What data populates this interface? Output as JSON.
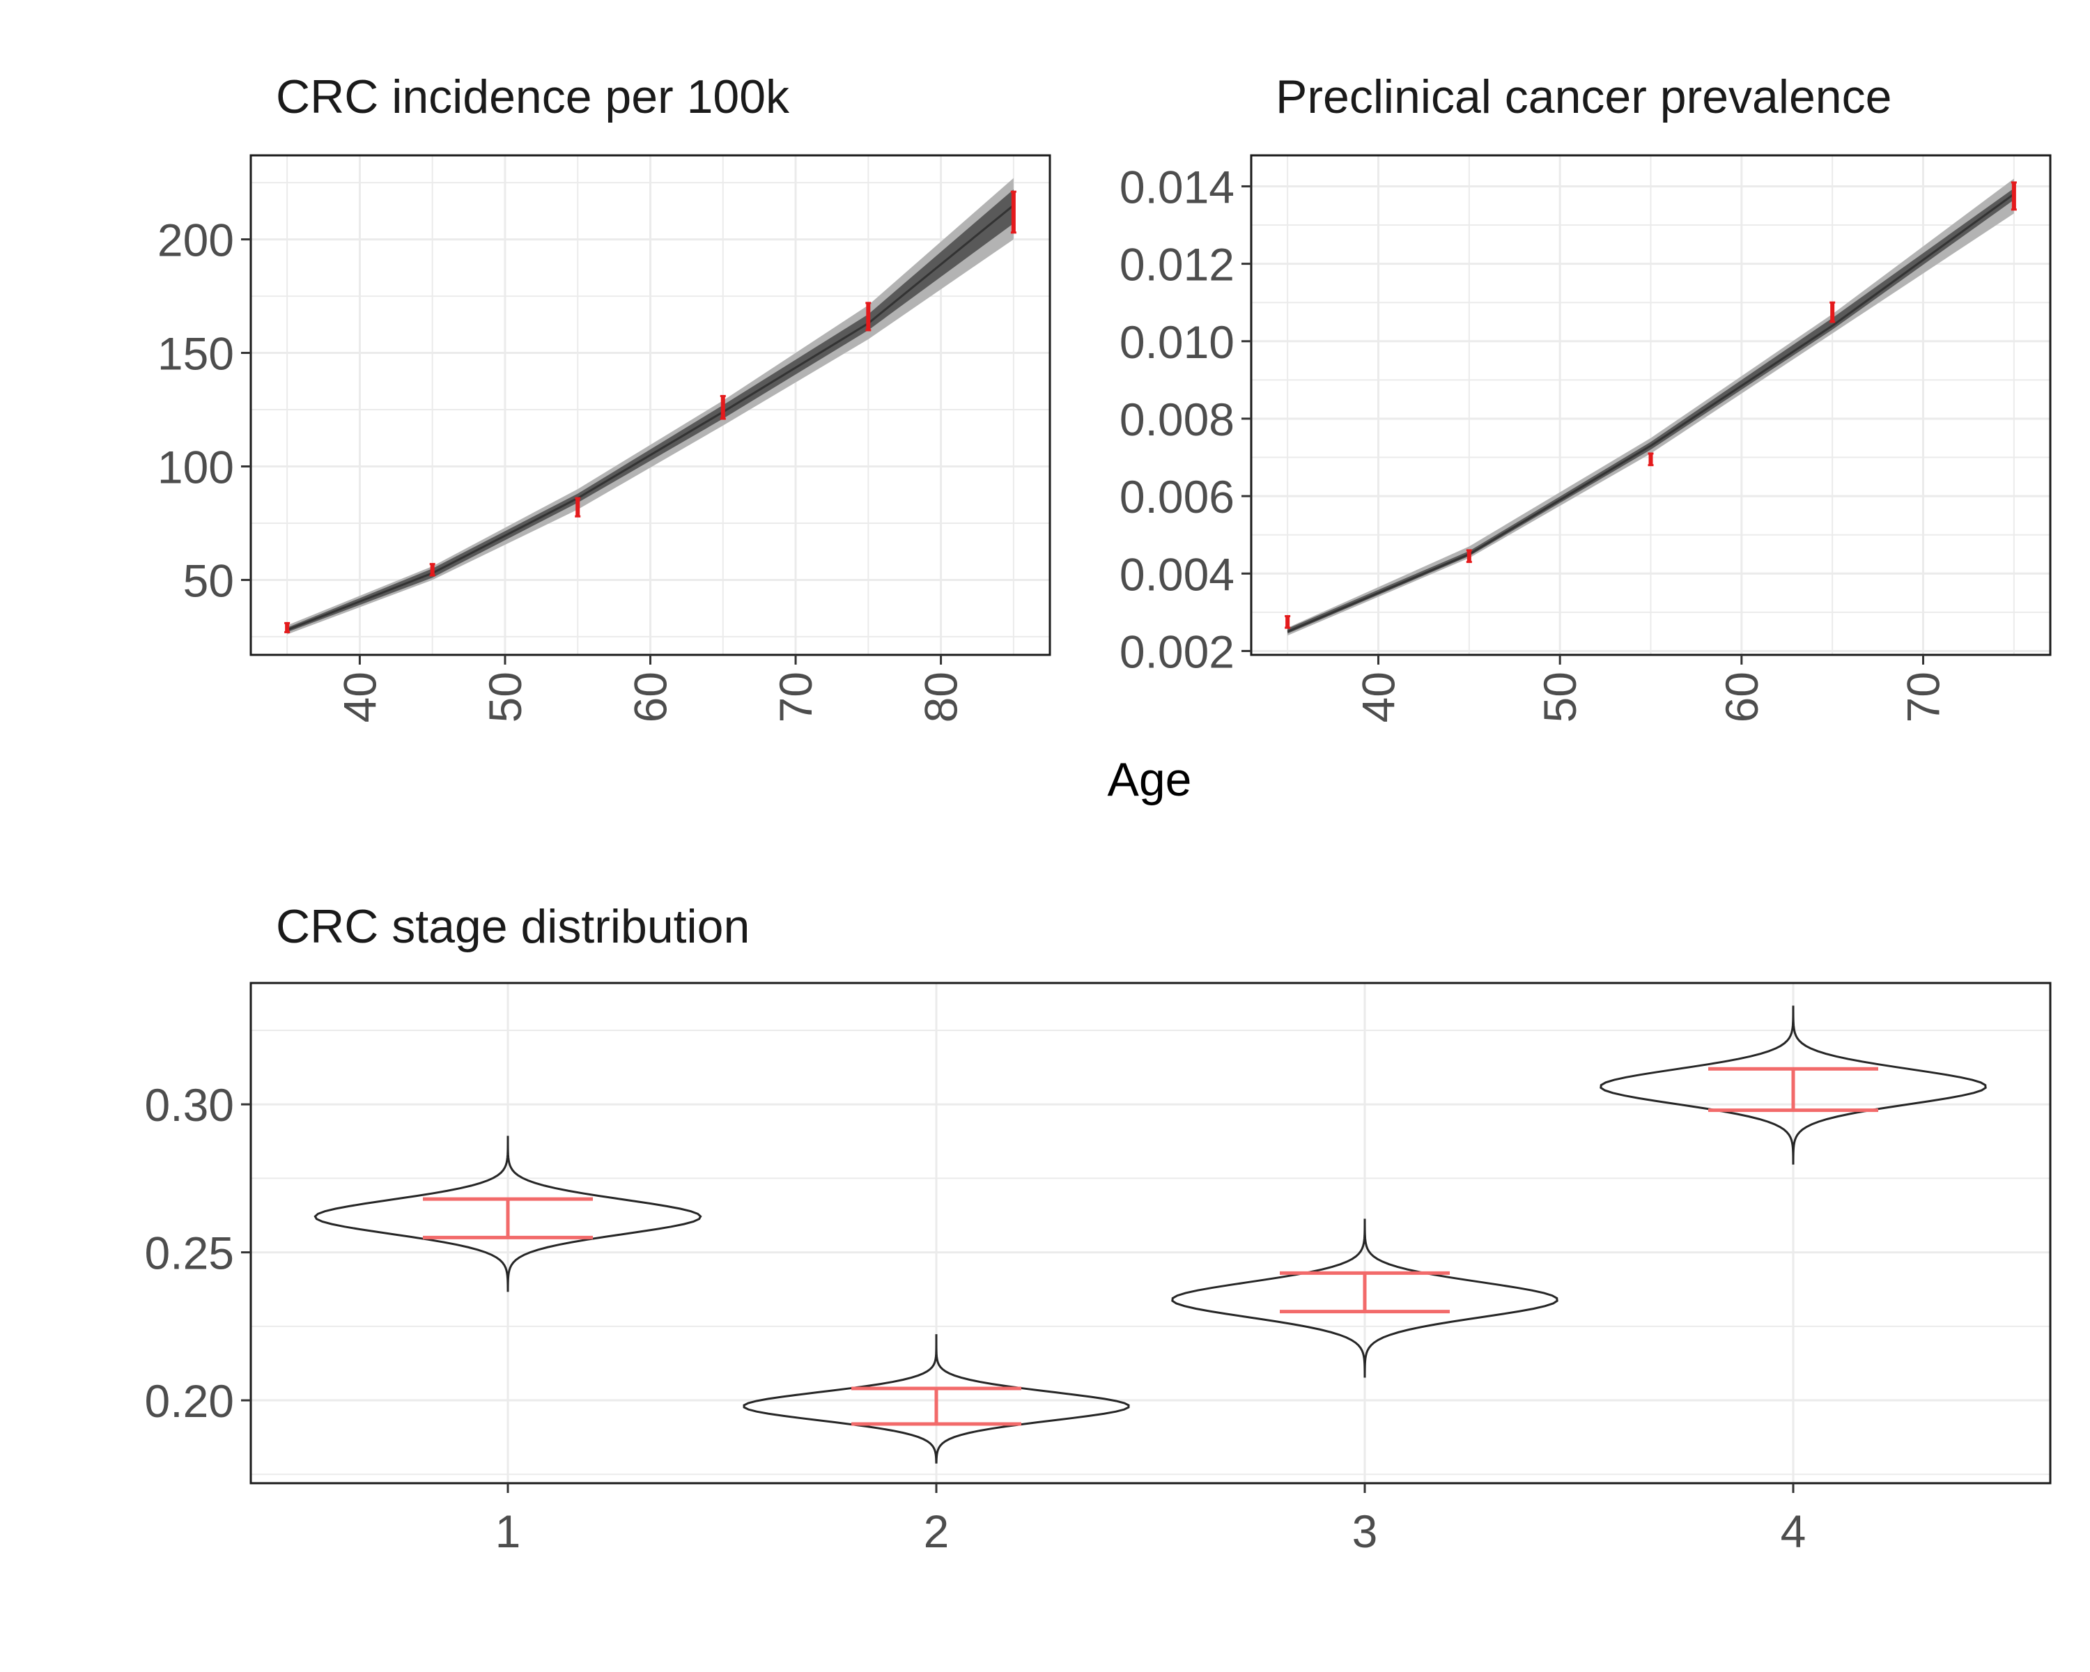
{
  "shared_xlabel": "Age",
  "colors": {
    "band_outer": "#b3b3b3",
    "band_inner": "#595959",
    "line": "#333333",
    "target": "#e41a1c",
    "target_soft": "#f26a6a",
    "grid": "#ebebeb",
    "violin_stroke": "#262626"
  },
  "chart_data": [
    {
      "id": "incidence",
      "type": "line",
      "title": "CRC incidence per 100k",
      "xlabel": "Age",
      "ylabel": "",
      "xlim": [
        32.5,
        87.5
      ],
      "ylim": [
        17,
        237
      ],
      "xticks": [
        40,
        50,
        60,
        70,
        80
      ],
      "yticks": [
        50,
        100,
        150,
        200
      ],
      "ytick_labels": [
        "50",
        "100",
        "150",
        "200"
      ],
      "x": [
        35,
        45,
        55,
        65,
        75,
        85
      ],
      "model_median": [
        28,
        53,
        86,
        124,
        163,
        215
      ],
      "model_inner": [
        [
          27,
          29
        ],
        [
          51,
          55
        ],
        [
          84,
          88
        ],
        [
          121,
          127
        ],
        [
          160,
          167
        ],
        [
          207,
          222
        ]
      ],
      "model_outer": [
        [
          26,
          30
        ],
        [
          50,
          56
        ],
        [
          81,
          90
        ],
        [
          118,
          129
        ],
        [
          156,
          171
        ],
        [
          200,
          227
        ]
      ],
      "targets": [
        [
          27,
          31
        ],
        [
          52,
          57
        ],
        [
          78,
          86
        ],
        [
          121,
          131
        ],
        [
          160,
          172
        ],
        [
          203,
          221
        ]
      ]
    },
    {
      "id": "prevalence",
      "type": "line",
      "title": "Preclinical cancer prevalence",
      "xlabel": "Age",
      "ylabel": "",
      "xlim": [
        33,
        77
      ],
      "ylim": [
        0.0019,
        0.0148
      ],
      "xticks": [
        40,
        50,
        60,
        70
      ],
      "yticks": [
        0.002,
        0.004,
        0.006,
        0.008,
        0.01,
        0.012,
        0.014
      ],
      "ytick_labels": [
        "0.002",
        "0.004",
        "0.006",
        "0.008",
        "0.010",
        "0.012",
        "0.014"
      ],
      "x": [
        35,
        45,
        55,
        65,
        75
      ],
      "model_median": [
        0.0025,
        0.0045,
        0.0073,
        0.0104,
        0.0138
      ],
      "model_inner": [
        [
          0.00245,
          0.00258
        ],
        [
          0.00445,
          0.00458
        ],
        [
          0.0072,
          0.0074
        ],
        [
          0.0103,
          0.0106
        ],
        [
          0.01365,
          0.01395
        ]
      ],
      "model_outer": [
        [
          0.0024,
          0.0026
        ],
        [
          0.0044,
          0.0047
        ],
        [
          0.0071,
          0.0075
        ],
        [
          0.0102,
          0.0107
        ],
        [
          0.0133,
          0.0142
        ]
      ],
      "targets": [
        [
          0.0026,
          0.0029
        ],
        [
          0.0043,
          0.0046
        ],
        [
          0.0068,
          0.0071
        ],
        [
          0.0105,
          0.011
        ],
        [
          0.0134,
          0.0141
        ]
      ]
    },
    {
      "id": "stage",
      "type": "violin",
      "title": "CRC stage distribution",
      "xlabel": "",
      "ylabel": "",
      "categories": [
        "1",
        "2",
        "3",
        "4"
      ],
      "ylim": [
        0.172,
        0.341
      ],
      "yticks": [
        0.2,
        0.25,
        0.3
      ],
      "ytick_labels": [
        "0.20",
        "0.25",
        "0.30"
      ],
      "distributions": [
        {
          "category": "1",
          "center": 0.262,
          "min": 0.237,
          "max": 0.289
        },
        {
          "category": "2",
          "center": 0.198,
          "min": 0.179,
          "max": 0.222
        },
        {
          "category": "3",
          "center": 0.234,
          "min": 0.208,
          "max": 0.261
        },
        {
          "category": "4",
          "center": 0.306,
          "min": 0.28,
          "max": 0.333
        }
      ],
      "targets": [
        [
          0.255,
          0.268
        ],
        [
          0.192,
          0.204
        ],
        [
          0.23,
          0.243
        ],
        [
          0.298,
          0.312
        ]
      ]
    }
  ]
}
